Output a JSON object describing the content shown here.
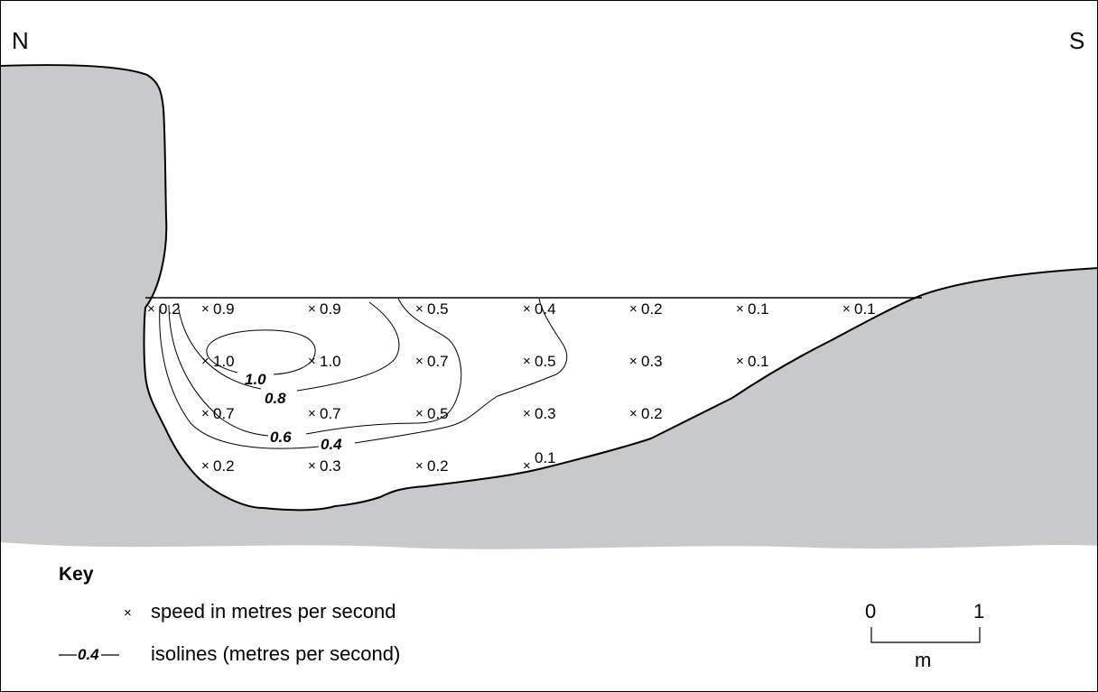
{
  "compass": {
    "north": "N",
    "south": "S"
  },
  "points": [
    {
      "id": "r1c1",
      "value": "0.2"
    },
    {
      "id": "r1c2",
      "value": "0.9"
    },
    {
      "id": "r1c3",
      "value": "0.9"
    },
    {
      "id": "r1c4",
      "value": "0.5"
    },
    {
      "id": "r1c5",
      "value": "0.4"
    },
    {
      "id": "r1c6",
      "value": "0.2"
    },
    {
      "id": "r1c7",
      "value": "0.1"
    },
    {
      "id": "r1c8",
      "value": "0.1"
    },
    {
      "id": "r2c2",
      "value": "1.0"
    },
    {
      "id": "r2c3",
      "value": "1.0"
    },
    {
      "id": "r2c4",
      "value": "0.7"
    },
    {
      "id": "r2c5",
      "value": "0.5"
    },
    {
      "id": "r2c6",
      "value": "0.3"
    },
    {
      "id": "r2c7",
      "value": "0.1"
    },
    {
      "id": "r3c2",
      "value": "0.7"
    },
    {
      "id": "r3c3",
      "value": "0.7"
    },
    {
      "id": "r3c4",
      "value": "0.5"
    },
    {
      "id": "r3c5",
      "value": "0.3"
    },
    {
      "id": "r3c6",
      "value": "0.2"
    },
    {
      "id": "r4c2",
      "value": "0.2"
    },
    {
      "id": "r4c3",
      "value": "0.3"
    },
    {
      "id": "r4c4",
      "value": "0.2"
    },
    {
      "id": "r4c5",
      "value": "0.1"
    }
  ],
  "isolines": [
    {
      "label": "1.0"
    },
    {
      "label": "0.8"
    },
    {
      "label": "0.6"
    },
    {
      "label": "0.4"
    }
  ],
  "key": {
    "title": "Key",
    "point_symbol": "×",
    "point_desc": "speed in metres per second",
    "isoline_sample": "0.4",
    "isoline_desc": "isolines (metres per second)"
  },
  "scale": {
    "start": "0",
    "end": "1",
    "unit": "m"
  },
  "colors": {
    "land": "#c8c9cb",
    "water": "#ffffff",
    "line": "#000000"
  }
}
